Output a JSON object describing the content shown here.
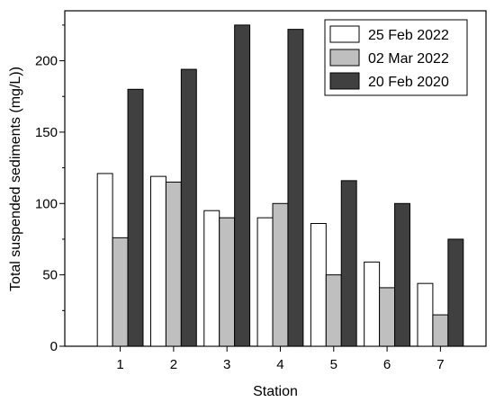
{
  "chart_data": {
    "type": "bar",
    "title": "",
    "xlabel": "Station",
    "ylabel": "Total suspended sediments (mg/L))",
    "categories": [
      "1",
      "2",
      "3",
      "4",
      "5",
      "6",
      "7"
    ],
    "ylim": [
      0,
      235
    ],
    "yticks": [
      0,
      50,
      100,
      150,
      200
    ],
    "grid": false,
    "legend_position": "top-right",
    "series": [
      {
        "name": "25 Feb 2022",
        "color": "#ffffff",
        "values": [
          121,
          119,
          95,
          90,
          86,
          59,
          44
        ]
      },
      {
        "name": "02 Mar 2022",
        "color": "#bfbfbf",
        "values": [
          76,
          115,
          90,
          100,
          50,
          41,
          22
        ]
      },
      {
        "name": "20 Feb 2020",
        "color": "#404040",
        "values": [
          180,
          194,
          225,
          222,
          116,
          100,
          75
        ]
      }
    ]
  }
}
